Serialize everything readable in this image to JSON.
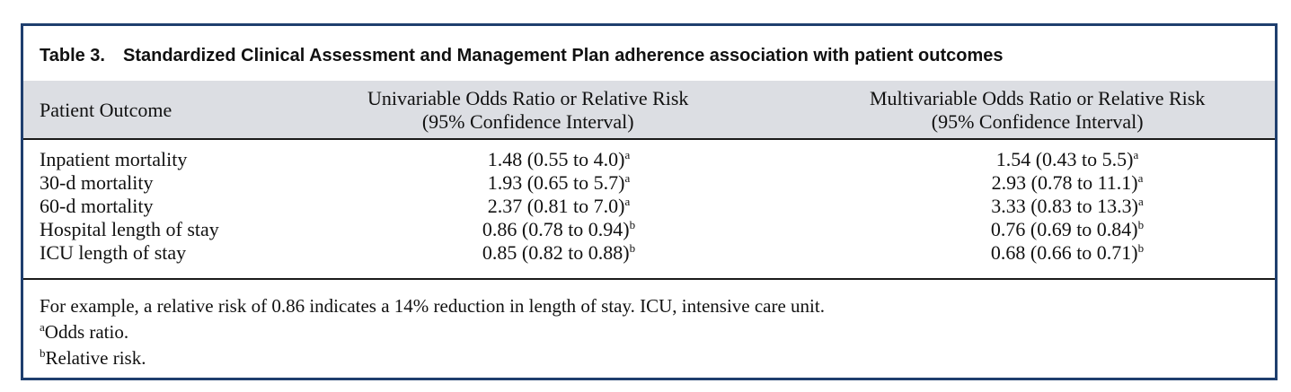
{
  "table": {
    "label": "Table 3.",
    "title": "Standardized Clinical Assessment and Management Plan adherence association with patient outcomes",
    "headers": {
      "col1": "Patient Outcome",
      "col2_line1": "Univariable Odds Ratio or Relative Risk",
      "col2_line2": "(95% Confidence Interval)",
      "col3_line1": "Multivariable Odds Ratio or Relative Risk",
      "col3_line2": "(95% Confidence Interval)"
    },
    "rows": [
      {
        "outcome": "Inpatient mortality",
        "uni": "1.48 (0.55 to 4.0)",
        "uni_sup": "a",
        "multi": "1.54 (0.43 to 5.5)",
        "multi_sup": "a"
      },
      {
        "outcome": "30-d mortality",
        "uni": "1.93 (0.65 to 5.7)",
        "uni_sup": "a",
        "multi": "2.93 (0.78 to 11.1)",
        "multi_sup": "a"
      },
      {
        "outcome": "60-d mortality",
        "uni": "2.37 (0.81 to 7.0)",
        "uni_sup": "a",
        "multi": "3.33 (0.83 to 13.3)",
        "multi_sup": "a"
      },
      {
        "outcome": "Hospital length of stay",
        "uni": "0.86 (0.78 to 0.94)",
        "uni_sup": "b",
        "multi": "0.76 (0.69 to 0.84)",
        "multi_sup": "b"
      },
      {
        "outcome": "ICU length of stay",
        "uni": "0.85 (0.82 to 0.88)",
        "uni_sup": "b",
        "multi": "0.68 (0.66 to 0.71)",
        "multi_sup": "b"
      }
    ],
    "footnotes": {
      "note": "For example, a relative risk of 0.86 indicates a 14% reduction in length of stay. ICU, intensive care unit.",
      "a_mark": "a",
      "a_text": "Odds ratio.",
      "b_mark": "b",
      "b_text": "Relative risk."
    }
  }
}
